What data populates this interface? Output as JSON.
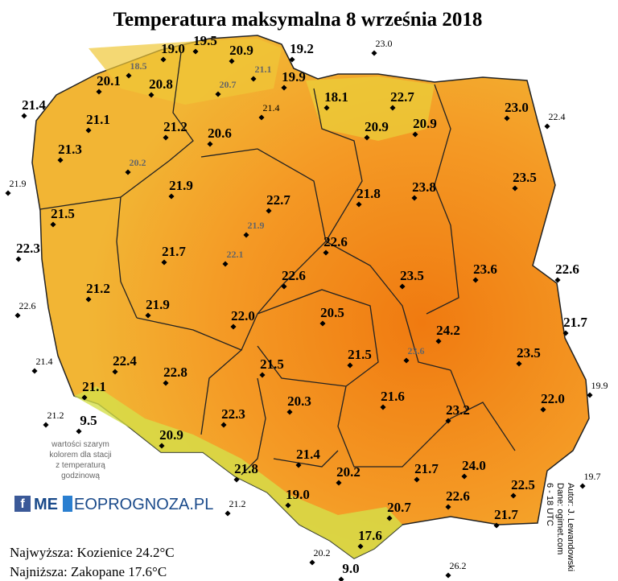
{
  "title": "Temperatura maksymalna 8 września 2018",
  "stations": [
    "19.0",
    "19.5",
    "20.9",
    "19.2",
    "20.1",
    "20.8",
    "19.9",
    "18.1",
    "22.7",
    "23.0",
    "21.4",
    "21.1",
    "21.2",
    "20.6",
    "20.9",
    "20.9",
    "21.3",
    "21.9",
    "22.7",
    "21.8",
    "23.8",
    "23.5",
    "21.5",
    "22.3",
    "21.7",
    "22.6",
    "22.6",
    "23.5",
    "23.6",
    "22.6",
    "21.2",
    "21.9",
    "22.0",
    "20.5",
    "24.2",
    "21.7",
    "22.4",
    "22.8",
    "21.5",
    "21.5",
    "23.5",
    "21.1",
    "20.3",
    "21.6",
    "23.2",
    "22.0",
    "9.5",
    "20.9",
    "22.3",
    "21.4",
    "24.0",
    "21.8",
    "20.2",
    "21.7",
    "22.5",
    "19.0",
    "22.6",
    "20.7",
    "21.7",
    "17.6",
    "9.0"
  ],
  "outer_stations": [
    "23.0",
    "22.4",
    "21.9",
    "22.6",
    "21.4",
    "19.9",
    "21.2",
    "19.7",
    "21.2",
    "20.2",
    "26.2",
    "21.4"
  ],
  "hourly_stations": [
    "18.5",
    "21.1",
    "20.7",
    "20.2",
    "21.9",
    "22.1",
    "23.6"
  ],
  "note": [
    "wartości szarym",
    "kolorem dla stacji",
    "z temperaturą",
    "godzinową"
  ],
  "logo": {
    "icon": "f",
    "left": "ME",
    "right": "EOPROGNOZA.PL"
  },
  "extremes": [
    "Najwyższa: Kozienice 24.2°C",
    "Najniższa: Zakopane 17.6°C"
  ],
  "credits": [
    "Autor: J. Lewandowski",
    "Dane: ogimet.com",
    "6 - 18 UTC"
  ]
}
